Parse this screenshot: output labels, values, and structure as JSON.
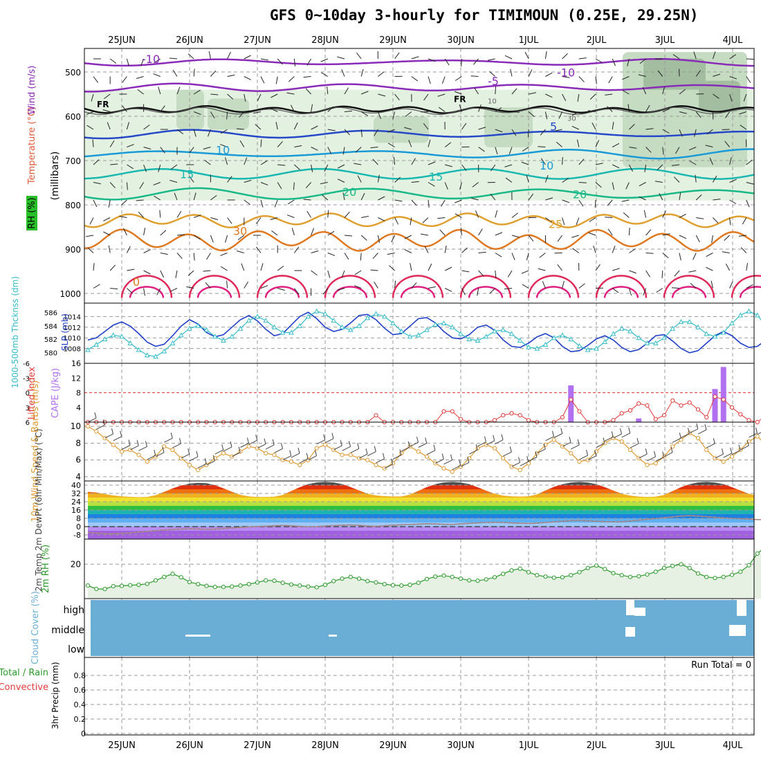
{
  "title": "GFS 0~10day 3-hourly for TIMIMOUN (0.25E, 29.25N)",
  "colors": {
    "grid": "#9a9a9a",
    "rh_fill_light": "#e3f1e0",
    "rh_fill_mid": "#c5dcc3",
    "rh_fill_dark": "#a2bd9f",
    "slp": "#1f3fc8",
    "thickness": "#33bcc8",
    "lifted_index": "#e23a3a",
    "cape": "#b070f0",
    "wind_speed": "#e09a30",
    "barb": "#444444",
    "rh2m": "#2a9a2a",
    "rh2m_fill": "#e6f1e4",
    "cloud": "#6aaed6",
    "precip_convective": "#e23a3a",
    "precip_total": "#2a9a2a"
  },
  "chart_data": [
    {
      "type": "line",
      "name": "upper-air",
      "dates": [
        "25JUN",
        "26JUN",
        "27JUN",
        "28JUN",
        "29JUN",
        "30JUN",
        "1JUL",
        "2JUL",
        "3JUL",
        "4JUL"
      ],
      "ylabel": "(millibars)",
      "left_labels": [
        "RH (%)",
        "Temperature (°C)",
        "Wind (m/s)"
      ],
      "y_ticks": [
        500,
        600,
        700,
        800,
        900,
        1000
      ],
      "ylim": [
        1000,
        450
      ],
      "freezing_label": "FR",
      "temperature_labels": [
        "-10",
        "-5",
        "5",
        "10",
        "15",
        "20",
        "25",
        "30",
        "0"
      ],
      "rh_labels": [
        "10",
        "30"
      ]
    },
    {
      "type": "line",
      "name": "slp-thickness",
      "left_label_primary": "1000-500mb Thcknss (dm)",
      "left_label_secondary": "SLP (mb)",
      "thickness_ticks": [
        580,
        582,
        584,
        586
      ],
      "slp_ticks": [
        1008,
        1010,
        1012,
        1014
      ],
      "series": [
        {
          "name": "SLP (mb)",
          "values": [
            1009.6,
            1010.0,
            1011.2,
            1012.4,
            1013.0,
            1012.2,
            1010.8,
            1009.2,
            1008.4,
            1008.8,
            1010.4,
            1012.2,
            1013.4,
            1012.6,
            1011.0,
            1010.2,
            1010.6,
            1012.0,
            1013.4,
            1014.2,
            1013.2,
            1011.6,
            1010.4,
            1010.8,
            1012.4,
            1014.0,
            1014.8,
            1013.6,
            1012.0,
            1011.2,
            1011.6,
            1012.8,
            1014.2,
            1014.4,
            1013.4,
            1011.8,
            1010.6,
            1010.8,
            1012.2,
            1013.6,
            1013.8,
            1012.8,
            1011.2,
            1010.0,
            1009.8,
            1010.6,
            1012.0,
            1012.4,
            1011.4,
            1009.6,
            1008.4,
            1008.2,
            1009.0,
            1010.2,
            1010.8,
            1010.0,
            1008.4,
            1007.4,
            1007.6,
            1008.6,
            1009.8,
            1010.4,
            1009.6,
            1008.2,
            1007.4,
            1007.8,
            1009.0,
            1010.4,
            1010.6,
            1009.4,
            1008.0,
            1007.2,
            1007.6,
            1009.0,
            1010.4,
            1011.2,
            1010.4,
            1009.0,
            1008.2,
            1008.4,
            1009.6,
            1010.2
          ]
        },
        {
          "name": "1000-500mb Thickness (dm)",
          "values": [
            580.4,
            581.2,
            582.0,
            582.6,
            582.4,
            581.4,
            580.4,
            579.6,
            579.4,
            580.2,
            581.4,
            582.6,
            583.6,
            584.0,
            583.4,
            582.4,
            581.8,
            582.4,
            583.6,
            584.8,
            585.4,
            584.8,
            583.8,
            583.0,
            583.0,
            584.0,
            585.4,
            586.2,
            585.8,
            584.8,
            583.8,
            583.4,
            584.0,
            585.2,
            585.8,
            585.4,
            584.4,
            583.2,
            582.4,
            582.6,
            583.4,
            584.2,
            584.4,
            583.8,
            582.8,
            582.0,
            581.8,
            582.4,
            583.2,
            583.4,
            582.8,
            581.8,
            580.8,
            580.6,
            581.2,
            582.2,
            582.6,
            582.0,
            581.0,
            580.4,
            580.6,
            581.6,
            582.8,
            583.6,
            583.2,
            582.2,
            581.4,
            581.4,
            582.2,
            583.6,
            584.6,
            584.6,
            583.8,
            582.8,
            582.4,
            583.0,
            584.4,
            585.6,
            586.2,
            585.6,
            584.0,
            582.6
          ]
        }
      ]
    },
    {
      "type": "bar",
      "name": "cape-lifted-index",
      "left_label_primary": "Lifted Index",
      "left_label_secondary": "CAPE (J/kg)",
      "li_ticks": [
        "-6",
        "-3",
        "0",
        "3",
        "6"
      ],
      "cape_ticks": [
        4,
        8,
        12,
        16
      ],
      "cape_bars": [
        {
          "x": 57.0,
          "value": 10.0
        },
        {
          "x": 65.0,
          "value": 1.0
        },
        {
          "x": 74.0,
          "value": 9.0
        },
        {
          "x": 75.0,
          "value": 15.0
        }
      ],
      "series": [
        {
          "name": "Lifted Index",
          "values": [
            7.5,
            7.5,
            7.5,
            7.5,
            7.5,
            7.5,
            7.5,
            7.5,
            7.5,
            7.5,
            7.5,
            7.5,
            7.5,
            7.5,
            7.5,
            7.5,
            7.5,
            7.5,
            7.5,
            7.5,
            7.5,
            7.5,
            7.5,
            7.5,
            7.5,
            7.5,
            7.5,
            7.5,
            7.5,
            7.5,
            7.5,
            7.5,
            7.5,
            7.5,
            4.6,
            7.5,
            7.5,
            7.5,
            7.5,
            7.5,
            7.5,
            7.5,
            3.8,
            3.8,
            5.4,
            7.5,
            7.5,
            6.2,
            5.6,
            4.6,
            4.2,
            4.6,
            5.6,
            7.5,
            7.5,
            7.5,
            5.0,
            1.4,
            3.8,
            6.8,
            7.5,
            7.0,
            5.6,
            4.2,
            3.6,
            2.2,
            2.6,
            5.4,
            4.6,
            1.6,
            2.6,
            2.0,
            3.4,
            5.0,
            0.8,
            1.4,
            3.0,
            4.4,
            5.6,
            6.2,
            4.6,
            7.5
          ]
        }
      ]
    },
    {
      "type": "line",
      "name": "10m-wind",
      "left_label": "10m Wind Speed & Barbs (m/s)",
      "y_ticks": [
        4,
        6,
        8,
        10
      ],
      "ylim": [
        3.5,
        10.5
      ],
      "series": [
        {
          "name": "10m Wind Speed",
          "values": [
            10.0,
            9.4,
            8.6,
            7.8,
            7.0,
            7.2,
            6.6,
            5.8,
            6.4,
            7.6,
            7.2,
            6.2,
            5.4,
            4.8,
            5.4,
            6.2,
            6.8,
            6.4,
            7.0,
            7.6,
            7.4,
            6.8,
            6.6,
            6.0,
            5.8,
            5.4,
            6.0,
            7.4,
            7.8,
            7.2,
            6.6,
            6.6,
            6.2,
            6.0,
            5.4,
            5.0,
            5.6,
            6.8,
            7.6,
            7.0,
            6.4,
            5.6,
            5.0,
            4.6,
            5.2,
            6.2,
            7.4,
            7.8,
            7.4,
            6.2,
            5.2,
            4.8,
            5.6,
            6.8,
            7.8,
            8.4,
            7.6,
            6.8,
            5.8,
            6.0,
            7.0,
            8.0,
            8.6,
            8.2,
            7.2,
            6.2,
            5.4,
            5.6,
            6.4,
            7.6,
            8.4,
            9.2,
            8.6,
            7.2,
            6.2,
            5.8,
            6.4,
            7.2,
            8.2,
            8.8,
            7.8,
            6.4
          ]
        }
      ]
    },
    {
      "type": "area",
      "name": "2m-temp",
      "left_label": "2m Temp 2m DewPt (6hr Min/Max) (°C)",
      "y_ticks": [
        -8,
        0,
        8,
        16,
        24,
        32,
        40
      ],
      "ylim": [
        -12,
        44
      ],
      "series": [
        {
          "name": "2m Temp",
          "values": [
            33.6,
            32.9,
            31.4,
            30.1,
            29.2,
            28.7,
            28.4,
            28.6,
            30.3,
            33.5,
            36.8,
            39.6,
            41.4,
            42.2,
            41.8,
            39.9,
            36.9,
            33.6,
            30.7,
            29.1,
            28.6,
            28.6,
            28.8,
            30.6,
            34.3,
            38.0,
            40.9,
            42.6,
            43.1,
            42.6,
            41.0,
            38.1,
            34.9,
            31.7,
            30.1,
            29.3,
            29.0,
            29.1,
            30.8,
            34.5,
            38.1,
            40.9,
            42.6,
            43.1,
            42.5,
            40.9,
            37.9,
            34.7,
            31.7,
            29.9,
            29.2,
            28.9,
            29.2,
            31.1,
            34.8,
            38.3,
            40.8,
            42.5,
            43.1,
            42.5,
            40.8,
            38.0,
            34.8,
            31.7,
            29.9,
            28.9,
            28.6,
            28.8,
            30.6,
            34.3,
            38.0,
            40.9,
            42.6,
            43.1,
            42.5,
            40.9,
            38.0,
            34.8,
            31.7,
            29.9,
            29.1,
            28.7
          ]
        },
        {
          "name": "2m DewPt",
          "values": [
            -5.5,
            -6.2,
            -6.8,
            -7.1,
            -6.6,
            -6.0,
            -5.2,
            -4.6,
            -3.9,
            -3.2,
            -2.8,
            -2.4,
            -2.0,
            -2.2,
            -2.6,
            -2.4,
            -1.8,
            -1.2,
            -0.8,
            -0.3,
            0.2,
            0.5,
            0.8,
            1.2,
            0.8,
            0.3,
            -0.2,
            0.0,
            0.6,
            1.0,
            1.4,
            1.6,
            1.2,
            0.6,
            0.4,
            0.8,
            1.4,
            1.8,
            2.0,
            2.4,
            2.8,
            2.6,
            2.2,
            2.0,
            2.6,
            3.2,
            3.6,
            4.0,
            4.2,
            4.0,
            3.6,
            3.2,
            3.0,
            3.4,
            4.0,
            4.6,
            5.2,
            5.8,
            6.0,
            5.6,
            5.2,
            4.8,
            4.6,
            4.8,
            5.4,
            6.2,
            7.0,
            7.8,
            8.6,
            9.4,
            10.2,
            10.6,
            10.2,
            9.6,
            9.0,
            8.4,
            8.0,
            7.6,
            7.2,
            6.8,
            6.6,
            7.0
          ]
        }
      ]
    },
    {
      "type": "area",
      "name": "2m-rh",
      "left_label": "2m RH (%)",
      "y_ticks": [
        20
      ],
      "ylim": [
        0,
        30
      ],
      "series": [
        {
          "name": "2m RH",
          "values": [
            7.6,
            5.6,
            5.6,
            7.2,
            7.4,
            7.8,
            8.0,
            8.6,
            10.6,
            12.6,
            14.4,
            12.4,
            9.6,
            8.4,
            7.4,
            6.8,
            6.8,
            7.0,
            7.6,
            8.4,
            9.4,
            10.6,
            10.4,
            9.2,
            8.2,
            7.6,
            7.0,
            6.6,
            8.0,
            10.2,
            11.6,
            12.6,
            11.6,
            10.2,
            9.4,
            8.4,
            7.8,
            7.6,
            8.0,
            9.2,
            11.4,
            12.8,
            13.4,
            12.6,
            11.6,
            10.6,
            10.4,
            11.2,
            12.4,
            14.4,
            16.4,
            17.4,
            15.4,
            13.6,
            12.8,
            12.2,
            12.4,
            13.6,
            15.4,
            17.8,
            19.2,
            17.2,
            14.8,
            13.6,
            12.6,
            13.0,
            14.0,
            15.6,
            17.8,
            19.0,
            20.0,
            17.8,
            14.6,
            12.6,
            12.0,
            12.6,
            13.8,
            15.6,
            19.4,
            26.2,
            30.4,
            29.6
          ]
        }
      ]
    },
    {
      "type": "heatmap",
      "name": "cloud-cover",
      "left_label": "Cloud Cover (%)",
      "levels": [
        "high",
        "middle",
        "low"
      ]
    },
    {
      "type": "bar",
      "name": "precip",
      "left_label_primary": "Total / Rain",
      "left_label_secondary": "Convective",
      "ylabel": "3hr Precip (mm)",
      "run_total": "Run Total = 0",
      "y_ticks": [
        "0",
        "0.2",
        "0.4",
        "0.6",
        "0.8"
      ],
      "ylim": [
        0,
        1
      ],
      "values": []
    }
  ]
}
